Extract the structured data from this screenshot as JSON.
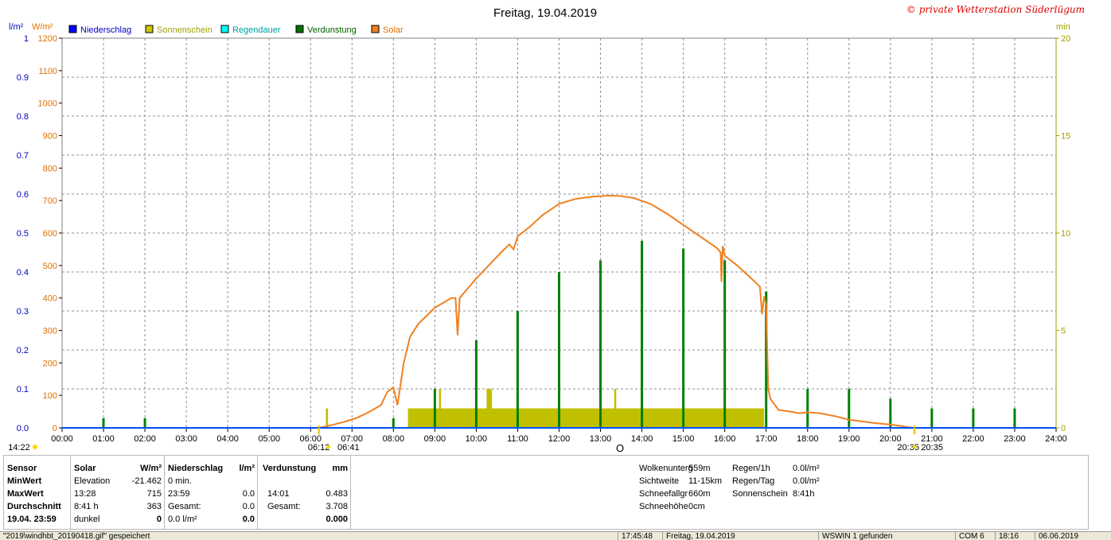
{
  "chart_data": {
    "type": "line",
    "title": "Freitag, 19.04.2019",
    "copyright": "© private Wetterstation Süderlügum",
    "left_axis1_unit": "l/m²",
    "left_axis2_unit": "W/m²",
    "right_axis_unit": "min",
    "legend": [
      {
        "name": "Niederschlag",
        "color": "#0000ff"
      },
      {
        "name": "Sonnenschein",
        "color": "#c8c800"
      },
      {
        "name": "Regendauer",
        "color": "#00ffff"
      },
      {
        "name": "Verdunstung",
        "color": "#007000"
      },
      {
        "name": "Solar",
        "color": "#f08020"
      }
    ],
    "x_ticks": [
      "00:00",
      "01:00",
      "02:00",
      "03:00",
      "04:00",
      "05:00",
      "06:00",
      "07:00",
      "08:00",
      "09:00",
      "10:00",
      "11:00",
      "12:00",
      "13:00",
      "14:00",
      "15:00",
      "16:00",
      "17:00",
      "18:00",
      "19:00",
      "20:00",
      "21:00",
      "22:00",
      "23:00",
      "24:00"
    ],
    "y_left1_ticks": [
      "0.0",
      "0.1",
      "0.2",
      "0.3",
      "0.4",
      "0.5",
      "0.6",
      "0.7",
      "0.8",
      "0.9",
      "1"
    ],
    "y_left2_ticks": [
      "0",
      "100",
      "200",
      "300",
      "400",
      "500",
      "600",
      "700",
      "800",
      "900",
      "1000",
      "1100",
      "1200"
    ],
    "y_right_ticks": [
      "0",
      "5",
      "10",
      "15",
      "20"
    ],
    "ylim_left1": [
      0,
      1
    ],
    "ylim_left2": [
      0,
      1200
    ],
    "ylim_right": [
      0,
      20
    ],
    "xlim_hours": [
      0,
      24
    ],
    "solar_series": {
      "name": "Solar",
      "x_hours": [
        6.2,
        6.5,
        6.8,
        7.1,
        7.4,
        7.7,
        7.85,
        8.0,
        8.1,
        8.25,
        8.4,
        8.6,
        8.8,
        9.0,
        9.2,
        9.4,
        9.5,
        9.55,
        9.6,
        9.8,
        10.0,
        10.3,
        10.6,
        10.8,
        10.9,
        11.0,
        11.3,
        11.6,
        12.0,
        12.4,
        12.8,
        13.2,
        13.47,
        13.8,
        14.2,
        14.6,
        15.0,
        15.4,
        15.8,
        15.9,
        15.92,
        15.95,
        16.0,
        16.3,
        16.6,
        16.85,
        16.9,
        16.95,
        17.0,
        17.05,
        17.1,
        17.3,
        17.6,
        17.8,
        18.0,
        18.3,
        18.5,
        18.7,
        18.85,
        19.0,
        19.3,
        19.6,
        20.0,
        20.3,
        20.55
      ],
      "values": [
        0,
        8,
        18,
        30,
        48,
        70,
        110,
        125,
        70,
        200,
        280,
        320,
        345,
        370,
        385,
        400,
        400,
        285,
        400,
        430,
        460,
        500,
        540,
        565,
        550,
        590,
        620,
        655,
        690,
        705,
        712,
        715,
        714,
        708,
        690,
        660,
        625,
        590,
        555,
        540,
        450,
        560,
        530,
        500,
        465,
        435,
        350,
        405,
        380,
        120,
        90,
        55,
        50,
        45,
        48,
        45,
        40,
        35,
        30,
        25,
        20,
        15,
        10,
        5,
        0
      ]
    },
    "sunshine_series": {
      "name": "Sonnenschein",
      "blocks": [
        {
          "start": 8.35,
          "end": 16.95,
          "minutes": 1
        },
        {
          "start": 6.37,
          "end": 6.42,
          "minutes": 1
        },
        {
          "start": 9.1,
          "end": 9.15,
          "minutes": 2
        },
        {
          "start": 10.25,
          "end": 10.38,
          "minutes": 2
        },
        {
          "start": 13.33,
          "end": 13.38,
          "minutes": 2
        }
      ]
    },
    "evaporation_series": {
      "name": "Verdunstung",
      "x_hours": [
        1,
        2,
        8,
        9,
        10,
        11,
        12,
        13,
        14,
        15,
        16,
        17,
        18,
        19,
        20,
        21,
        22,
        23
      ],
      "values_min": [
        0.5,
        0.5,
        0.5,
        2,
        4.5,
        6,
        8,
        8.6,
        9.6,
        9.2,
        8.6,
        7,
        2,
        2,
        1.5,
        1,
        1,
        1
      ]
    },
    "annotations": {
      "sunrise_civil": "06:12",
      "sunrise": "06:41",
      "sunset": "20:35",
      "sunset2": "20:35",
      "current_time": "14:22",
      "solar_noon_marker": "O"
    }
  },
  "stats": {
    "sensor_label": "Sensor",
    "min_label": "MinWert",
    "max_label": "MaxWert",
    "avg_label": "Durchschnitt",
    "date_label": "19.04. 23:59",
    "solar_header": "Solar",
    "solar_unit": "W/m²",
    "solar_rows": [
      [
        "Elevation",
        "-21.462"
      ],
      [
        "13:28",
        "715"
      ],
      [
        "8:41 h",
        "363"
      ],
      [
        "dunkel",
        "0"
      ]
    ],
    "rain_header": "Niederschlag",
    "rain_unit": "l/m²",
    "rain_rows": [
      [
        "0 min.",
        ""
      ],
      [
        "23:59",
        "0.0"
      ],
      [
        "Gesamt:",
        "0.0"
      ],
      [
        "0.0 l/m²",
        "0.0"
      ]
    ],
    "evap_header": "Verdunstung",
    "evap_unit": "mm",
    "evap_rows": [
      [
        "",
        ""
      ],
      [
        "14:01",
        "0.483"
      ],
      [
        "Gesamt:",
        "3.708"
      ],
      [
        "",
        "0.000"
      ]
    ],
    "extra_left": [
      [
        "Wolkenunterg",
        "559m"
      ],
      [
        "Sichtweite",
        "11-15km"
      ],
      [
        "Schneefallgr",
        "660m"
      ],
      [
        "Schneehöhe",
        "0cm"
      ]
    ],
    "extra_right": [
      [
        "Regen/1h",
        "0.0l/m²"
      ],
      [
        "Regen/Tag",
        "0.0l/m²"
      ],
      [
        "Sonnenschein",
        "8:41h"
      ]
    ]
  },
  "statusbar": {
    "file": "\"2019\\windhbt_20190418.gif\" gespeichert",
    "time": "17:45:48",
    "date": "Freitag, 19.04.2019",
    "found": "WSWIN 1 gefunden",
    "port": "COM 6",
    "clock": "18:16",
    "today": "06.06.2019"
  }
}
